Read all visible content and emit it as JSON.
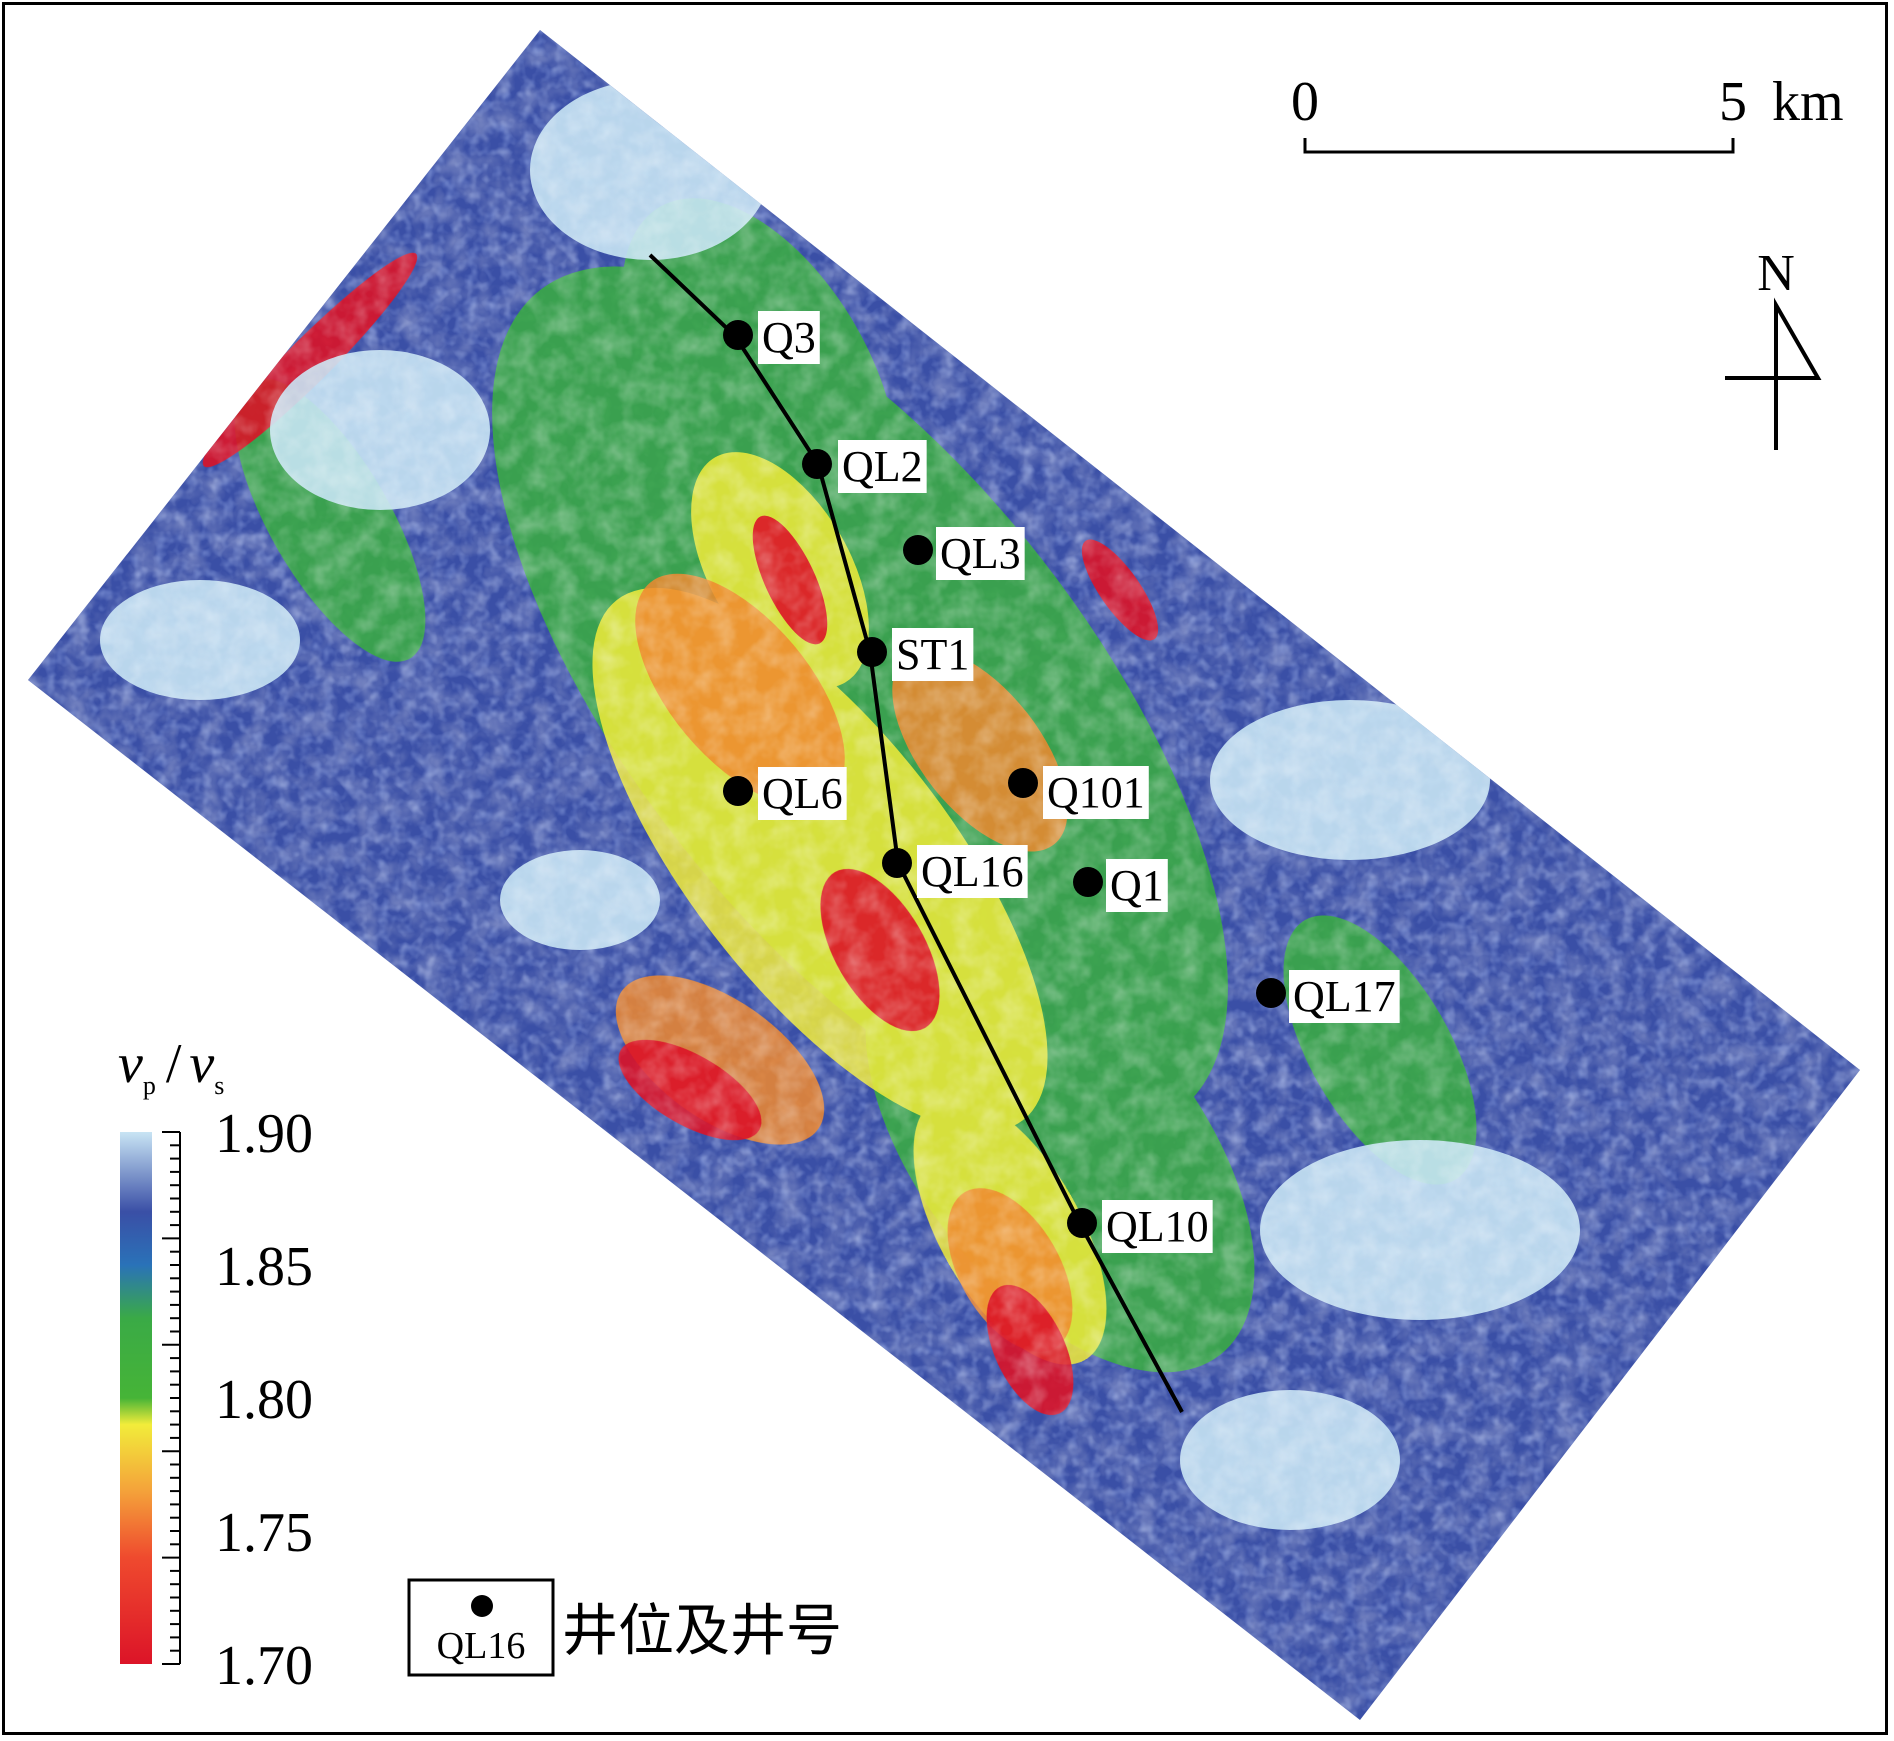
{
  "scale_bar": {
    "start_label": "0",
    "end_label": "5",
    "unit_label": "km"
  },
  "north_arrow": {
    "label": "N",
    "icon": "north-arrow-icon"
  },
  "legend": {
    "symbol_well_label": "QL16",
    "description": "井位及井号"
  },
  "color_scale": {
    "title_num": "v",
    "title_num_sub": "p",
    "title_slash": "/",
    "title_den": "v",
    "title_den_sub": "s",
    "ticks": [
      "1.90",
      "1.85",
      "1.80",
      "1.75",
      "1.70"
    ],
    "min": 1.7,
    "max": 1.9,
    "stops": [
      {
        "value": 1.7,
        "color": "#dc1428"
      },
      {
        "value": 1.74,
        "color": "#ef4a2e"
      },
      {
        "value": 1.765,
        "color": "#f4a23a"
      },
      {
        "value": 1.79,
        "color": "#f2ec3a"
      },
      {
        "value": 1.8,
        "color": "#46b437"
      },
      {
        "value": 1.83,
        "color": "#3aaa46"
      },
      {
        "value": 1.85,
        "color": "#2a72b8"
      },
      {
        "value": 1.87,
        "color": "#3a4fa6"
      },
      {
        "value": 1.9,
        "color": "#c8e4f4"
      }
    ]
  },
  "wells": [
    {
      "name": "Q3"
    },
    {
      "name": "QL2"
    },
    {
      "name": "QL3"
    },
    {
      "name": "ST1"
    },
    {
      "name": "QL6"
    },
    {
      "name": "Q101"
    },
    {
      "name": "QL16"
    },
    {
      "name": "Q1"
    },
    {
      "name": "QL17"
    },
    {
      "name": "QL10"
    }
  ]
}
